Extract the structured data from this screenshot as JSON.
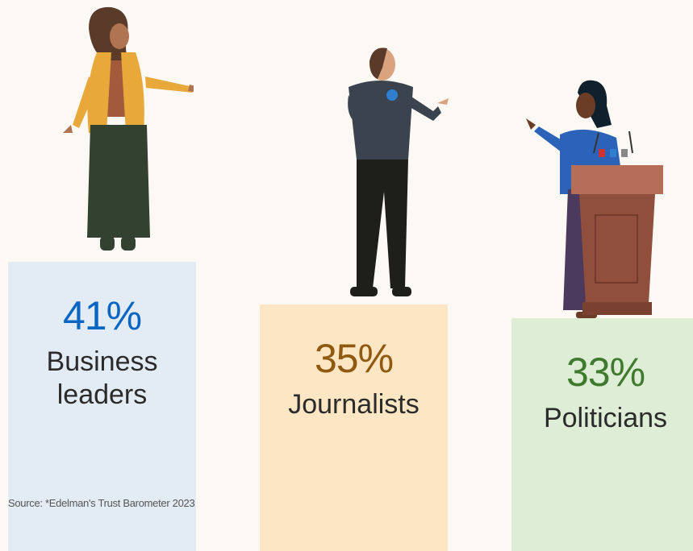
{
  "chart_data": {
    "type": "bar",
    "categories": [
      "Business leaders",
      "Journalists",
      "Politicians"
    ],
    "values": [
      41,
      35,
      33
    ],
    "value_labels": [
      "41%",
      "35%",
      "33%"
    ],
    "colors": [
      "#e3ebf5",
      "#fde6c4",
      "#deedd6"
    ],
    "label_colors": [
      "#0a66c2",
      "#8f5a10",
      "#3f7a2e"
    ],
    "source": "Source: *Edelman's Trust Barometer 2023"
  }
}
